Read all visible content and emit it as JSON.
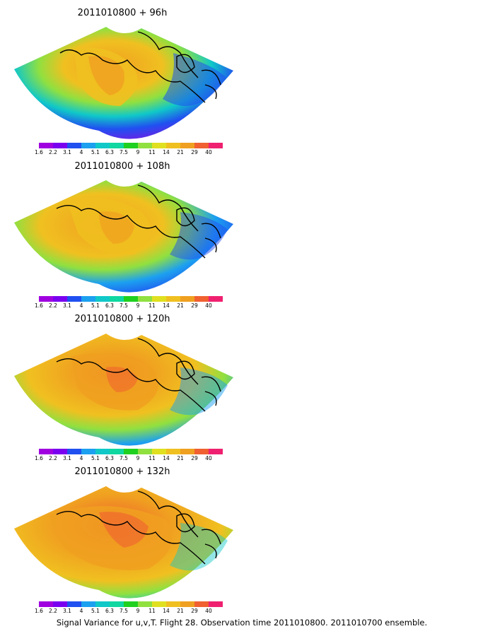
{
  "panels": [
    {
      "title": "2011010800  +  96h"
    },
    {
      "title": "2011010800  +  108h"
    },
    {
      "title": "2011010800  +  120h"
    },
    {
      "title": "2011010800  +  132h"
    }
  ],
  "colorbar": {
    "tick_labels": [
      "1.6",
      "2.2",
      "3.1",
      "4",
      "5.1",
      "6.3",
      "7.5",
      "9",
      "11",
      "14",
      "21",
      "29",
      "40"
    ],
    "colors": [
      "#a000e0",
      "#7a00f0",
      "#2050f0",
      "#1ca0f0",
      "#10c8c8",
      "#10d8a0",
      "#20d020",
      "#90e040",
      "#e0e020",
      "#f0c020",
      "#f0a020",
      "#f06030",
      "#f02070"
    ]
  },
  "caption": "Signal Variance for u,v,T. Flight 28. Observation time 2011010800. 2011010700 ensemble."
}
